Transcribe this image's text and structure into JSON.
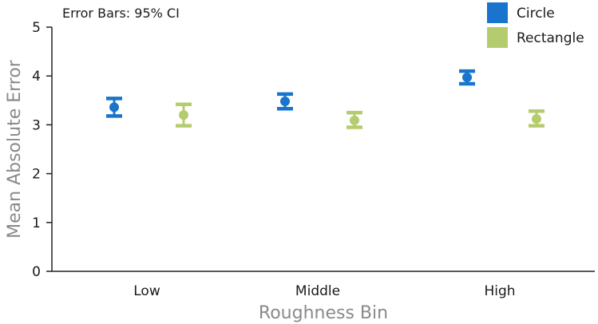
{
  "chart_data": {
    "type": "scatter",
    "annotation": "Error Bars: 95% CI",
    "xlabel": "Roughness Bin",
    "ylabel": "Mean Absolute Error",
    "categories": [
      "Low",
      "Middle",
      "High"
    ],
    "ylim": [
      0,
      5
    ],
    "yticks": [
      "0",
      "1",
      "2",
      "3",
      "4",
      "5"
    ],
    "grid": false,
    "legend_position": "top-right",
    "series": [
      {
        "name": "Circle",
        "color": "#1874cd",
        "values": [
          3.36,
          3.48,
          3.97
        ],
        "ci_low": [
          3.18,
          3.33,
          3.84
        ],
        "ci_high": [
          3.54,
          3.63,
          4.1
        ]
      },
      {
        "name": "Rectangle",
        "color": "#b5cc6e",
        "values": [
          3.2,
          3.09,
          3.12
        ],
        "ci_low": [
          2.98,
          2.95,
          2.98
        ],
        "ci_high": [
          3.42,
          3.25,
          3.28
        ]
      }
    ]
  }
}
